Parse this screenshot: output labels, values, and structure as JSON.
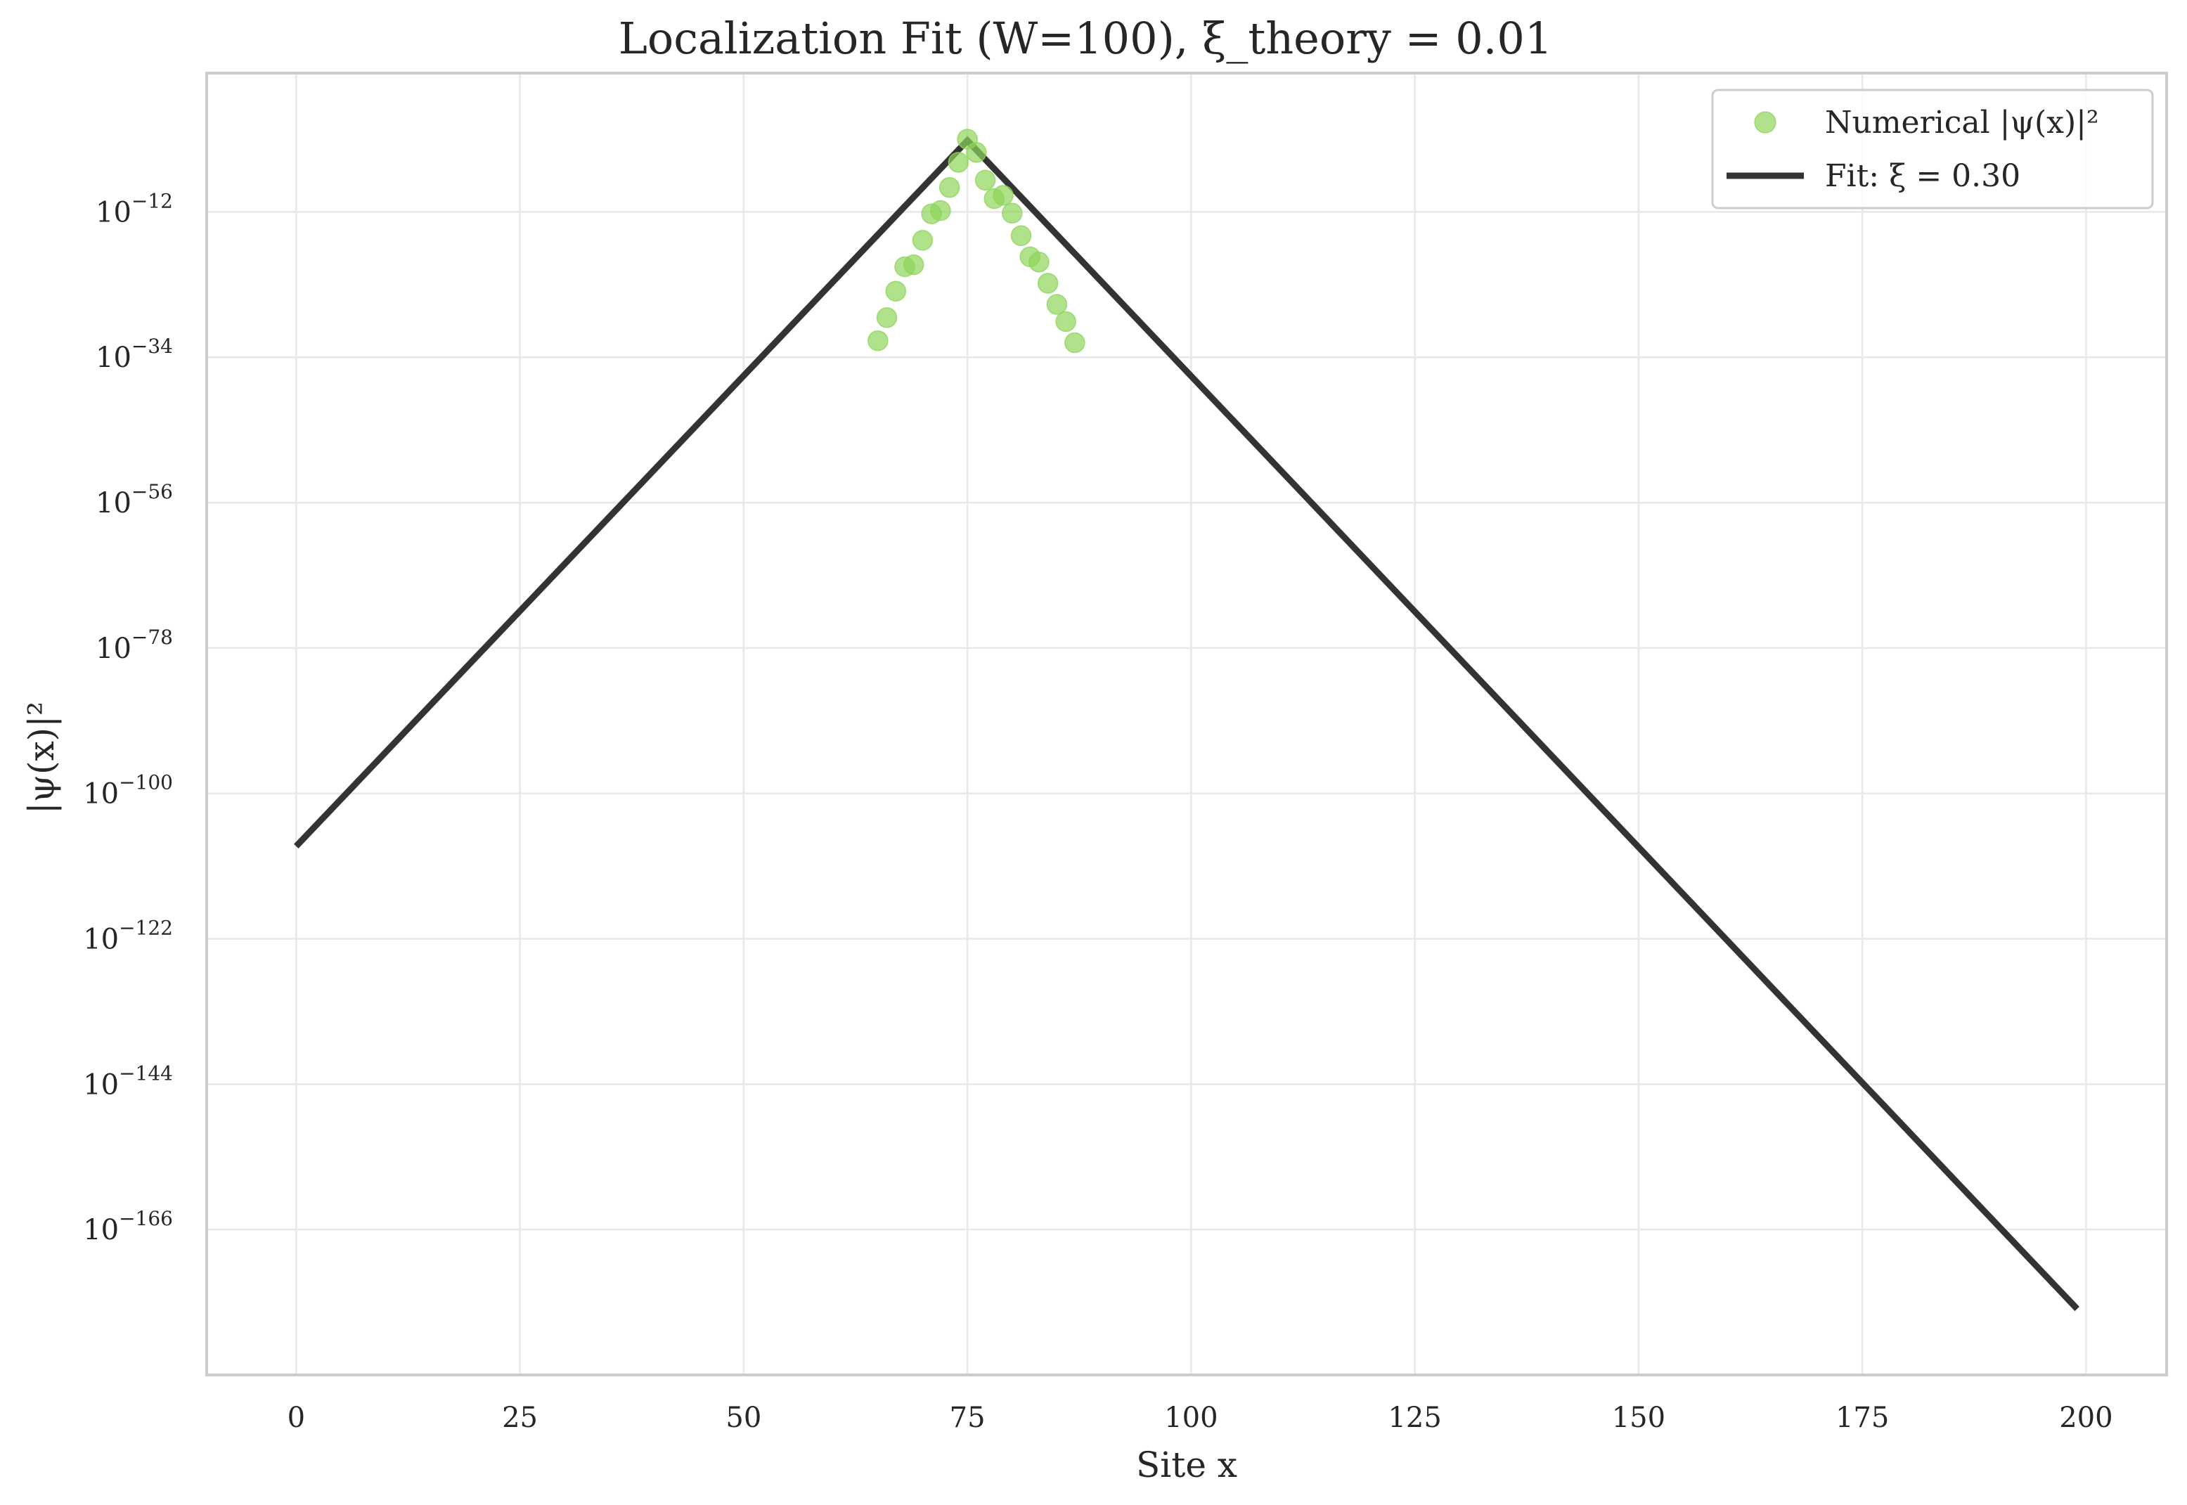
{
  "chart_data": {
    "type": "scatter",
    "title": "Localization Fit (W=100), ξ_theory = 0.01",
    "xlabel": "Site x",
    "ylabel": "|ψ(x)|²",
    "xlim": [
      -10,
      209
    ],
    "ylim_log10": [
      -188,
      9
    ],
    "y_scale": "log",
    "grid": true,
    "legend_position": "top-right",
    "x_ticks": [
      0,
      25,
      50,
      75,
      100,
      125,
      150,
      175,
      200
    ],
    "y_ticks": [
      {
        "base": "10",
        "exp": "−12",
        "log10": -12
      },
      {
        "base": "10",
        "exp": "−34",
        "log10": -34
      },
      {
        "base": "10",
        "exp": "−56",
        "log10": -56
      },
      {
        "base": "10",
        "exp": "−78",
        "log10": -78
      },
      {
        "base": "10",
        "exp": "−100",
        "log10": -100
      },
      {
        "base": "10",
        "exp": "−122",
        "log10": -122
      },
      {
        "base": "10",
        "exp": "−144",
        "log10": -144
      },
      {
        "base": "10",
        "exp": "−166",
        "log10": -166
      }
    ],
    "series": [
      {
        "name": "Numerical |ψ(x)|²",
        "kind": "scatter",
        "color": "#8fd45a",
        "points": [
          {
            "x": 65,
            "log10_y": -31.5
          },
          {
            "x": 66,
            "log10_y": -28
          },
          {
            "x": 67,
            "log10_y": -24
          },
          {
            "x": 68,
            "log10_y": -20.3
          },
          {
            "x": 69,
            "log10_y": -20
          },
          {
            "x": 70,
            "log10_y": -16.3
          },
          {
            "x": 71,
            "log10_y": -12.3
          },
          {
            "x": 72,
            "log10_y": -11.8
          },
          {
            "x": 73,
            "log10_y": -8.3
          },
          {
            "x": 74,
            "log10_y": -4.5
          },
          {
            "x": 75,
            "log10_y": -1
          },
          {
            "x": 76,
            "log10_y": -3
          },
          {
            "x": 77,
            "log10_y": -7.2
          },
          {
            "x": 78,
            "log10_y": -10
          },
          {
            "x": 79,
            "log10_y": -9.5
          },
          {
            "x": 80,
            "log10_y": -12.2
          },
          {
            "x": 81,
            "log10_y": -15.6
          },
          {
            "x": 82,
            "log10_y": -18.8
          },
          {
            "x": 83,
            "log10_y": -19.6
          },
          {
            "x": 84,
            "log10_y": -22.8
          },
          {
            "x": 85,
            "log10_y": -26
          },
          {
            "x": 86,
            "log10_y": -28.6
          },
          {
            "x": 87,
            "log10_y": -31.8
          }
        ]
      },
      {
        "name": "Fit: ξ = 0.30",
        "kind": "line",
        "color": "#333333",
        "points": [
          {
            "x": 0,
            "log10_y": -108
          },
          {
            "x": 75,
            "log10_y": -1.2
          },
          {
            "x": 199,
            "log10_y": -178
          }
        ]
      }
    ]
  }
}
